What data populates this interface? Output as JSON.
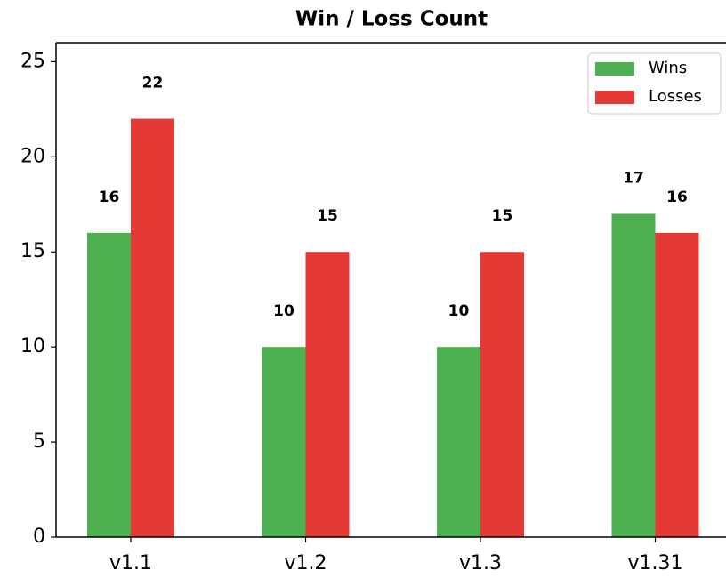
{
  "chart_data": {
    "type": "grouped_bar",
    "title": "Win / Loss Count",
    "categories": [
      "v1.1",
      "v1.2",
      "v1.3",
      "v1.31"
    ],
    "series": [
      {
        "name": "Wins",
        "color": "#4caf50",
        "values": [
          16,
          10,
          10,
          17
        ]
      },
      {
        "name": "Losses",
        "color": "#e53935",
        "values": [
          22,
          15,
          15,
          16
        ]
      }
    ],
    "ylim": [
      0,
      26
    ],
    "yticks": [
      0,
      5,
      10,
      15,
      20,
      25
    ],
    "legend": "upper right"
  }
}
